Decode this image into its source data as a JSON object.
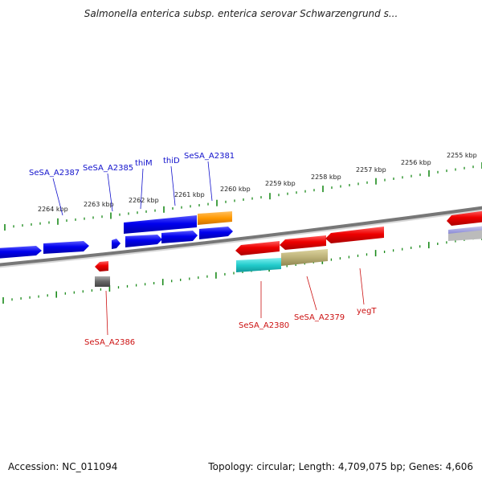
{
  "title": "Salmonella enterica subsp. enterica serovar Schwarzengrund s...",
  "footer": {
    "accession": "Accession: NC_011094",
    "summary": "Topology: circular; Length: 4,709,075 bp; Genes: 4,606"
  },
  "scale_ticks": [
    "2264 kbp",
    "2263 kbp",
    "2262 kbp",
    "2261 kbp",
    "2260 kbp",
    "2259 kbp",
    "2258 kbp",
    "2257 kbp",
    "2256 kbp",
    "2255 kbp"
  ],
  "gene_labels": {
    "forward": [
      "SeSA_A2387",
      "SeSA_A2385",
      "thiM",
      "thiD",
      "SeSA_A2381"
    ],
    "reverse": [
      "SeSA_A2386",
      "SeSA_A2380",
      "SeSA_A2379",
      "yegT"
    ]
  },
  "colors": {
    "forward_cds": "#0000ee",
    "reverse_cds": "#ee0000",
    "backbone": "#888888",
    "ticks": "#1a8a1a",
    "forward_label": "#1111cc",
    "reverse_label": "#cc1111",
    "orange_feature": "#ff9900",
    "cyan_feature": "#22cccc",
    "khaki_feature": "#bbb077",
    "gray_feature": "#666666",
    "lavender_feature": "#9999dd"
  }
}
